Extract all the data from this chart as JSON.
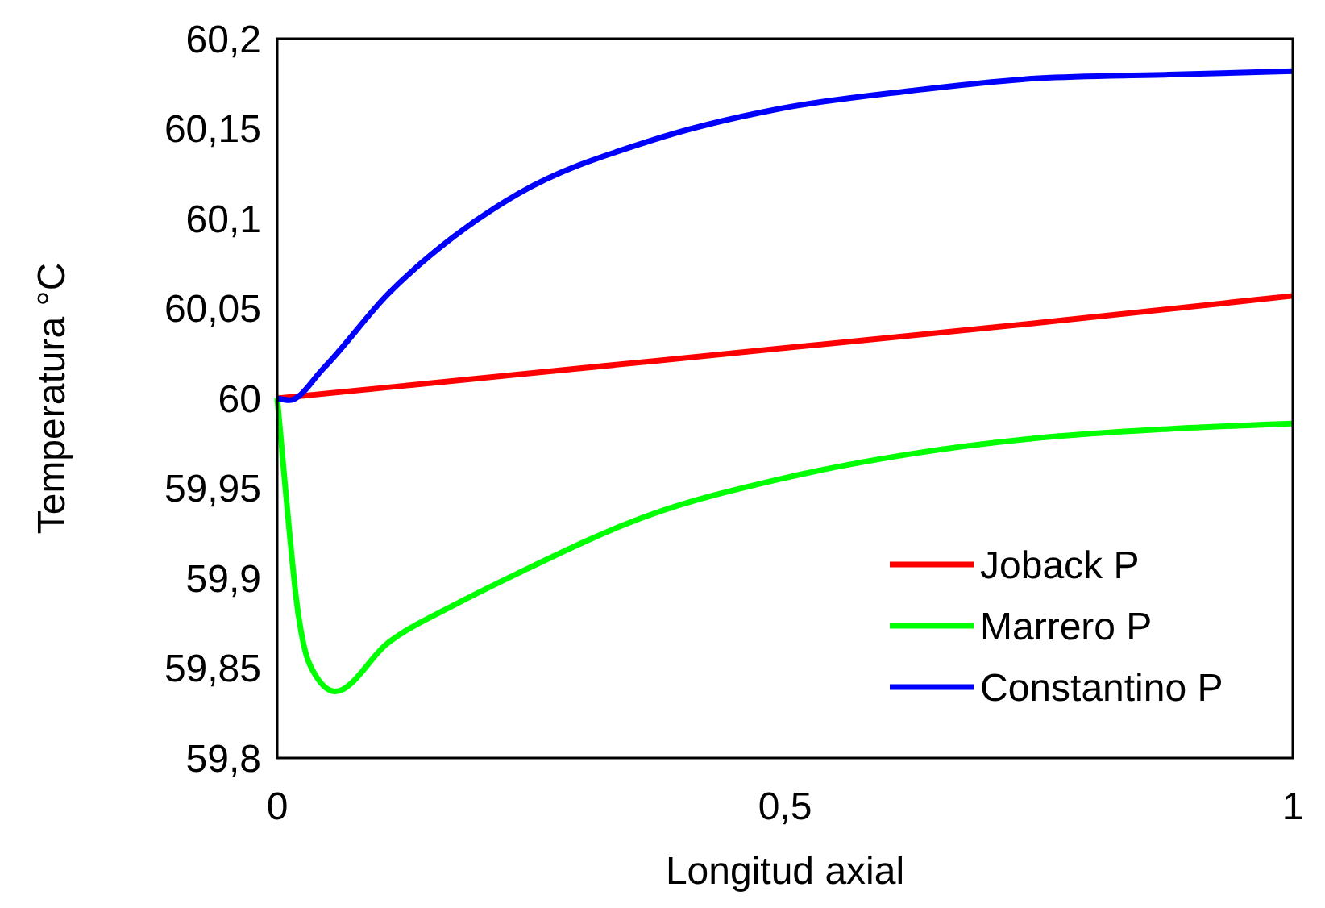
{
  "chart_data": {
    "type": "line",
    "xlabel": "Longitud axial",
    "ylabel": "Temperatura °C",
    "xlim": [
      0,
      1
    ],
    "xticks": [
      0,
      {
        "value": 0.5,
        "label": "0,5"
      },
      1
    ],
    "ylim": [
      59.8,
      60.2
    ],
    "yticks": [
      {
        "value": 59.8,
        "label": "59,8"
      },
      {
        "value": 59.85,
        "label": "59,85"
      },
      {
        "value": 59.9,
        "label": "59,9"
      },
      {
        "value": 59.95,
        "label": "59,95"
      },
      {
        "value": 60,
        "label": "60"
      },
      {
        "value": 60.05,
        "label": "60,05"
      },
      {
        "value": 60.1,
        "label": "60,1"
      },
      {
        "value": 60.15,
        "label": "60,15"
      },
      {
        "value": 60.2,
        "label": "60,2"
      }
    ],
    "grid": false,
    "legend": "bottom right",
    "line_style": "solid",
    "marker": "none",
    "series": [
      {
        "name": "Joback P",
        "color": "#ff0000",
        "x": [
          0,
          0.25,
          0.5,
          0.75,
          1
        ],
        "values": [
          60,
          60.014,
          60.028,
          60.042,
          60.057
        ]
      },
      {
        "name": "Marrero P",
        "color": "#00ff00",
        "x": [
          0,
          0.008,
          0.02,
          0.032,
          0.057,
          0.109,
          0.174,
          0.238,
          0.366,
          0.494,
          0.623,
          0.75,
          0.878,
          1
        ],
        "values": [
          60,
          59.95,
          59.883,
          59.852,
          59.837,
          59.864,
          59.885,
          59.903,
          59.935,
          59.955,
          59.969,
          59.978,
          59.983,
          59.986
        ]
      },
      {
        "name": "Constantino P",
        "color": "#0000ff",
        "x": [
          0,
          0.012,
          0.046,
          0.109,
          0.174,
          0.238,
          0.366,
          0.494,
          0.623,
          0.75,
          0.878,
          1
        ],
        "values": [
          60,
          59.999,
          60.017,
          60.058,
          60.09,
          60.114,
          60.143,
          60.161,
          60.171,
          60.178,
          60.18,
          60.182
        ]
      }
    ]
  }
}
